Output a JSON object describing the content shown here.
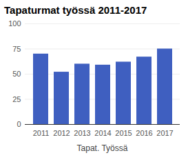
{
  "chart_data": {
    "type": "bar",
    "title": "Tapaturmat työssä 2011-2017",
    "x_label": "Tapat. Työssä",
    "categories": [
      "2011",
      "2012",
      "2013",
      "2014",
      "2015",
      "2016",
      "2017"
    ],
    "values": [
      70,
      52,
      60,
      59,
      62,
      67,
      75
    ],
    "color": "#3f5fc0",
    "ylim": [
      0,
      100
    ],
    "yticks": [
      0,
      25,
      50,
      75,
      100
    ],
    "grid": true
  }
}
